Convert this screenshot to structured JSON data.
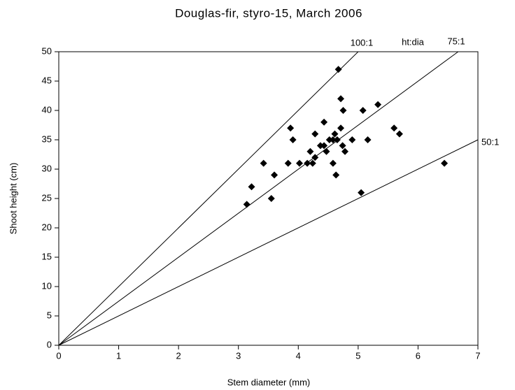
{
  "chart_data": {
    "type": "scatter",
    "title": "Douglas-fir, styro-15, March 2006",
    "x_label": "Stem diameter (mm)",
    "y_label": "Shoot height (cm)",
    "annotation": "ht:dia",
    "xlim": [
      0,
      7
    ],
    "ylim": [
      0,
      50
    ],
    "xticks": [
      0,
      1,
      2,
      3,
      4,
      5,
      6,
      7
    ],
    "yticks": [
      0,
      5,
      10,
      15,
      20,
      25,
      30,
      35,
      40,
      45,
      50
    ],
    "color": "#000000",
    "x": [
      3.14,
      3.22,
      3.42,
      3.55,
      3.6,
      3.83,
      3.87,
      3.91,
      4.02,
      4.15,
      4.2,
      4.24,
      4.28,
      4.28,
      4.37,
      4.43,
      4.43,
      4.47,
      4.52,
      4.58,
      4.58,
      4.61,
      4.63,
      4.65,
      4.67,
      4.71,
      4.71,
      4.74,
      4.75,
      4.78,
      4.9,
      5.05,
      5.08,
      5.16,
      5.33,
      5.6,
      5.69,
      6.44
    ],
    "y": [
      24,
      27,
      31,
      25,
      29,
      31,
      37,
      35,
      31,
      31,
      33,
      31,
      32,
      36,
      34,
      34,
      38,
      33,
      35,
      31,
      35,
      36,
      29,
      35,
      47,
      42,
      37,
      34,
      40,
      33,
      35,
      26,
      40,
      35,
      41,
      37,
      36,
      31
    ],
    "reference_lines": [
      {
        "label": "100:1",
        "x": [
          0,
          5
        ],
        "y": [
          0,
          50
        ]
      },
      {
        "label": "75:1",
        "x": [
          0,
          6.67
        ],
        "y": [
          0,
          50
        ]
      },
      {
        "label": "50:1",
        "x": [
          0,
          7
        ],
        "y": [
          0,
          35
        ]
      }
    ]
  }
}
